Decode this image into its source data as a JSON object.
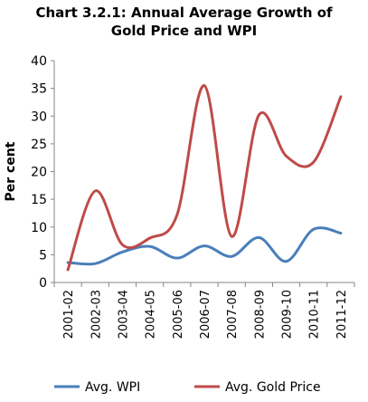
{
  "chart_data": {
    "type": "line",
    "title_line1": "Chart 3.2.1: Annual Average Growth of",
    "title_line2": "Gold Price and WPI",
    "ylabel": "Per cent",
    "xlabel": "",
    "ylim": [
      0,
      40
    ],
    "yticks": [
      "0",
      "5",
      "10",
      "15",
      "20",
      "25",
      "30",
      "35",
      "40"
    ],
    "categories": [
      "2001-02",
      "2002-03",
      "2003-04",
      "2004-05",
      "2005-06",
      "2006-07",
      "2007-08",
      "2008-09",
      "2009-10",
      "2010-11",
      "2011-12"
    ],
    "series": [
      {
        "name": "Avg. WPI",
        "color": "#4a7ebb",
        "values": [
          3.6,
          3.4,
          5.5,
          6.5,
          4.4,
          6.6,
          4.7,
          8.1,
          3.8,
          9.6,
          8.9
        ]
      },
      {
        "name": "Avg. Gold Price",
        "color": "#be4b48",
        "values": [
          2.3,
          16.5,
          6.8,
          8.0,
          12.2,
          35.5,
          8.3,
          30.2,
          22.8,
          21.7,
          33.5
        ]
      }
    ],
    "grid": false,
    "legend": "bottom"
  }
}
